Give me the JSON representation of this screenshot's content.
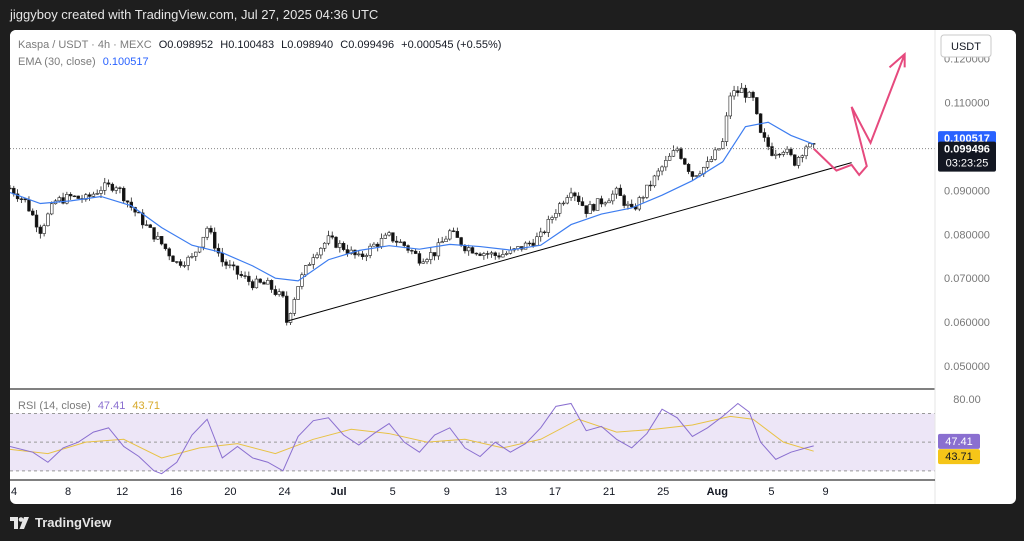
{
  "header": {
    "publisher_line": "jiggyboy created with TradingView.com, Jul 27, 2025 04:36 UTC"
  },
  "legend": {
    "symbol": "Kaspa / USDT · 4h · MEXC",
    "o_label": "O",
    "o_value": "0.098952",
    "h_label": "H",
    "h_value": "0.100483",
    "l_label": "L",
    "l_value": "0.098940",
    "c_label": "C",
    "c_value": "0.099496",
    "change": "+0.000545 (+0.55%)",
    "ema_label": "EMA (30, close)",
    "ema_value": "0.100517"
  },
  "currency_button": "USDT",
  "price_tags": {
    "ema": "0.100517",
    "last": "0.099496",
    "countdown": "03:23:25"
  },
  "rsi": {
    "label": "RSI (14, close)",
    "rsi_value": "47.41",
    "ma_value": "43.71",
    "scale_top": "80.00",
    "tag_rsi": "47.41",
    "tag_ma": "43.71"
  },
  "footer": {
    "brand": "TradingView"
  },
  "colors": {
    "up": "#5d5d5d",
    "down": "#111111",
    "ema": "#3d7df0",
    "rsi": "#8a6fd0",
    "rsi_ma": "#e8c245",
    "projection": "#e64a7e",
    "trendline": "#000000",
    "tag_blue": "#2962ff",
    "tag_dark": "#131722",
    "tag_yellow": "#f5c518"
  },
  "chart_data": [
    {
      "type": "candlestick",
      "title": "Kaspa / USDT · 4h · MEXC",
      "ylim": [
        0.045,
        0.1265
      ],
      "y_ticks": [
        "0.120000",
        "0.110000",
        "0.100000",
        "0.090000",
        "0.080000",
        "0.070000",
        "0.060000",
        "0.050000"
      ],
      "x_ticks": [
        "4",
        "8",
        "12",
        "16",
        "20",
        "24",
        "Jul",
        "5",
        "9",
        "13",
        "17",
        "21",
        "25",
        "Aug",
        "5",
        "9"
      ],
      "path_points": [
        [
          0,
          0.0905
        ],
        [
          4,
          0.0875
        ],
        [
          8,
          0.081
        ],
        [
          12,
          0.0875
        ],
        [
          16,
          0.0885
        ],
        [
          20,
          0.088
        ],
        [
          24,
          0.0905
        ],
        [
          28,
          0.0912
        ],
        [
          32,
          0.0862
        ],
        [
          36,
          0.0818
        ],
        [
          40,
          0.0778
        ],
        [
          44,
          0.0735
        ],
        [
          48,
          0.0745
        ],
        [
          52,
          0.0815
        ],
        [
          56,
          0.0738
        ],
        [
          60,
          0.071
        ],
        [
          64,
          0.0688
        ],
        [
          68,
          0.0685
        ],
        [
          72,
          0.0652
        ],
        [
          73,
          0.0601
        ],
        [
          76,
          0.0685
        ],
        [
          80,
          0.0755
        ],
        [
          84,
          0.0788
        ],
        [
          88,
          0.077
        ],
        [
          92,
          0.0745
        ],
        [
          96,
          0.0775
        ],
        [
          100,
          0.0795
        ],
        [
          104,
          0.0775
        ],
        [
          108,
          0.0745
        ],
        [
          112,
          0.0758
        ],
        [
          116,
          0.0805
        ],
        [
          120,
          0.0772
        ],
        [
          124,
          0.076
        ],
        [
          128,
          0.0752
        ],
        [
          132,
          0.0758
        ],
        [
          136,
          0.0775
        ],
        [
          140,
          0.0795
        ],
        [
          144,
          0.0855
        ],
        [
          148,
          0.0905
        ],
        [
          152,
          0.0855
        ],
        [
          156,
          0.0875
        ],
        [
          160,
          0.0895
        ],
        [
          164,
          0.0852
        ],
        [
          168,
          0.0902
        ],
        [
          172,
          0.0952
        ],
        [
          176,
          0.0995
        ],
        [
          180,
          0.0935
        ],
        [
          184,
          0.0958
        ],
        [
          188,
          0.1008
        ],
        [
          190,
          0.1118
        ],
        [
          193,
          0.1128
        ],
        [
          196,
          0.1105
        ],
        [
          198,
          0.1025
        ],
        [
          201,
          0.0988
        ],
        [
          204,
          0.0995
        ],
        [
          207,
          0.0965
        ],
        [
          210,
          0.1002
        ],
        [
          212,
          0.0995
        ]
      ],
      "ema_points": [
        [
          0,
          0.0895
        ],
        [
          8,
          0.087
        ],
        [
          16,
          0.0876
        ],
        [
          24,
          0.0886
        ],
        [
          32,
          0.0865
        ],
        [
          40,
          0.0815
        ],
        [
          48,
          0.0775
        ],
        [
          56,
          0.0758
        ],
        [
          64,
          0.0728
        ],
        [
          70,
          0.07
        ],
        [
          76,
          0.0694
        ],
        [
          84,
          0.0742
        ],
        [
          92,
          0.0763
        ],
        [
          100,
          0.0774
        ],
        [
          108,
          0.0766
        ],
        [
          116,
          0.0777
        ],
        [
          124,
          0.0772
        ],
        [
          132,
          0.0764
        ],
        [
          140,
          0.0775
        ],
        [
          148,
          0.0822
        ],
        [
          156,
          0.0846
        ],
        [
          164,
          0.086
        ],
        [
          172,
          0.0889
        ],
        [
          180,
          0.0922
        ],
        [
          188,
          0.0965
        ],
        [
          194,
          0.1045
        ],
        [
          200,
          0.1055
        ],
        [
          206,
          0.1025
        ],
        [
          212,
          0.1005
        ]
      ],
      "trendline": [
        [
          73,
          0.0602
        ],
        [
          222,
          0.0963
        ]
      ],
      "projection": [
        [
          212,
          0.0995
        ],
        [
          218,
          0.0945
        ],
        [
          222,
          0.0958
        ],
        [
          224,
          0.0935
        ],
        [
          226,
          0.0955
        ],
        [
          222,
          0.109
        ],
        [
          227,
          0.1008
        ],
        [
          236,
          0.121
        ],
        [
          232,
          0.118
        ],
        [
          236,
          0.121
        ],
        [
          236,
          0.118
        ]
      ],
      "last_price": 0.099496,
      "ema_last": 0.100517
    },
    {
      "type": "line",
      "title": "RSI (14, close)",
      "ylim": [
        25,
        85
      ],
      "bands": [
        30,
        50,
        70
      ],
      "scale_labels": [
        "80.00"
      ],
      "rsi_points": [
        [
          0,
          47
        ],
        [
          6,
          43
        ],
        [
          10,
          36
        ],
        [
          14,
          46
        ],
        [
          18,
          50
        ],
        [
          22,
          57
        ],
        [
          26,
          60
        ],
        [
          30,
          47
        ],
        [
          34,
          40
        ],
        [
          38,
          30
        ],
        [
          40,
          28
        ],
        [
          44,
          36
        ],
        [
          48,
          55
        ],
        [
          52,
          66
        ],
        [
          56,
          39
        ],
        [
          60,
          47
        ],
        [
          64,
          39
        ],
        [
          68,
          36
        ],
        [
          72,
          30
        ],
        [
          76,
          54
        ],
        [
          80,
          65
        ],
        [
          84,
          67
        ],
        [
          88,
          55
        ],
        [
          92,
          48
        ],
        [
          96,
          56
        ],
        [
          100,
          63
        ],
        [
          104,
          50
        ],
        [
          108,
          43
        ],
        [
          112,
          55
        ],
        [
          116,
          60
        ],
        [
          120,
          46
        ],
        [
          124,
          40
        ],
        [
          128,
          50
        ],
        [
          132,
          43
        ],
        [
          136,
          49
        ],
        [
          140,
          60
        ],
        [
          144,
          75
        ],
        [
          148,
          77
        ],
        [
          152,
          58
        ],
        [
          156,
          61
        ],
        [
          160,
          52
        ],
        [
          164,
          46
        ],
        [
          168,
          56
        ],
        [
          172,
          73
        ],
        [
          176,
          67
        ],
        [
          180,
          54
        ],
        [
          184,
          60
        ],
        [
          188,
          68
        ],
        [
          192,
          77
        ],
        [
          195,
          71
        ],
        [
          198,
          50
        ],
        [
          202,
          38
        ],
        [
          206,
          43
        ],
        [
          210,
          46
        ],
        [
          212,
          47.41
        ]
      ],
      "ma_points": [
        [
          0,
          45
        ],
        [
          10,
          42
        ],
        [
          20,
          50
        ],
        [
          30,
          52
        ],
        [
          40,
          39
        ],
        [
          50,
          46
        ],
        [
          60,
          49
        ],
        [
          70,
          42
        ],
        [
          80,
          52
        ],
        [
          90,
          59
        ],
        [
          100,
          56
        ],
        [
          110,
          50
        ],
        [
          120,
          52
        ],
        [
          130,
          46
        ],
        [
          140,
          52
        ],
        [
          150,
          66
        ],
        [
          160,
          57
        ],
        [
          170,
          59
        ],
        [
          180,
          62
        ],
        [
          190,
          68
        ],
        [
          196,
          66
        ],
        [
          204,
          50
        ],
        [
          212,
          43.71
        ]
      ],
      "rsi_last": 47.41,
      "ma_last": 43.71
    }
  ]
}
